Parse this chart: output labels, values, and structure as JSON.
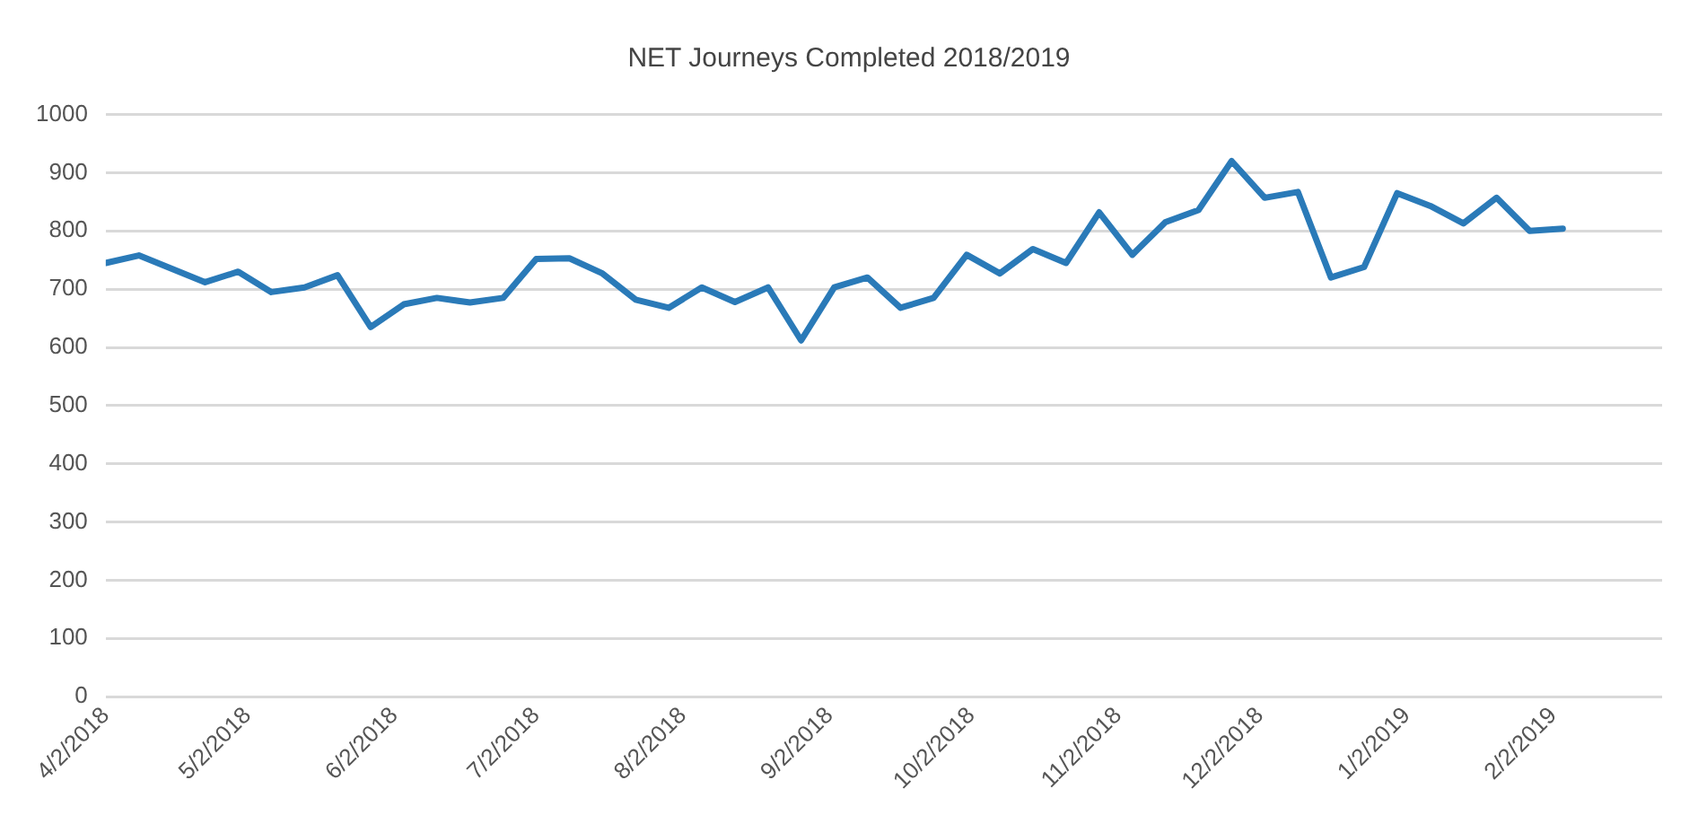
{
  "chart_data": {
    "type": "line",
    "title": "NET Journeys Completed 2018/2019",
    "x": [
      "2018-04-02",
      "2018-04-09",
      "2018-04-16",
      "2018-04-23",
      "2018-04-30",
      "2018-05-07",
      "2018-05-14",
      "2018-05-21",
      "2018-05-28",
      "2018-06-04",
      "2018-06-11",
      "2018-06-18",
      "2018-06-25",
      "2018-07-02",
      "2018-07-09",
      "2018-07-16",
      "2018-07-23",
      "2018-07-30",
      "2018-08-06",
      "2018-08-13",
      "2018-08-20",
      "2018-08-27",
      "2018-09-03",
      "2018-09-10",
      "2018-09-17",
      "2018-09-24",
      "2018-10-01",
      "2018-10-08",
      "2018-10-15",
      "2018-10-22",
      "2018-10-29",
      "2018-11-05",
      "2018-11-12",
      "2018-11-19",
      "2018-11-26",
      "2018-12-03",
      "2018-12-10",
      "2018-12-17",
      "2018-12-24",
      "2018-12-31",
      "2019-01-07",
      "2019-01-14",
      "2019-01-21",
      "2019-01-28",
      "2019-02-04"
    ],
    "series": [
      {
        "color": "#2a7ab8",
        "values": [
          745,
          758,
          735,
          712,
          730,
          695,
          703,
          724,
          635,
          674,
          685,
          677,
          685,
          752,
          753,
          727,
          682,
          668,
          703,
          678,
          703,
          612,
          703,
          720,
          668,
          685,
          759,
          727,
          769,
          745,
          832,
          759,
          815,
          836,
          920,
          857,
          867,
          720,
          738,
          865,
          843,
          813,
          857,
          800,
          804
        ]
      }
    ],
    "xlim": [
      "2018-04-02",
      "2019-02-25"
    ],
    "xticks": [
      {
        "value": "2018-04-02",
        "label": "4/2/2018"
      },
      {
        "value": "2018-05-02",
        "label": "5/2/2018"
      },
      {
        "value": "2018-06-02",
        "label": "6/2/2018"
      },
      {
        "value": "2018-07-02",
        "label": "7/2/2018"
      },
      {
        "value": "2018-08-02",
        "label": "8/2/2018"
      },
      {
        "value": "2018-09-02",
        "label": "9/2/2018"
      },
      {
        "value": "2018-10-02",
        "label": "10/2/2018"
      },
      {
        "value": "2018-11-02",
        "label": "11/2/2018"
      },
      {
        "value": "2018-12-02",
        "label": "12/2/2018"
      },
      {
        "value": "2019-01-02",
        "label": "1/2/2019"
      },
      {
        "value": "2019-02-02",
        "label": "2/2/2019"
      }
    ],
    "ylim": [
      0,
      1000
    ],
    "yticks": [
      0,
      100,
      200,
      300,
      400,
      500,
      600,
      700,
      800,
      900,
      1000
    ],
    "grid": "y",
    "legend": false,
    "marker": "none",
    "line_style": "solid"
  }
}
